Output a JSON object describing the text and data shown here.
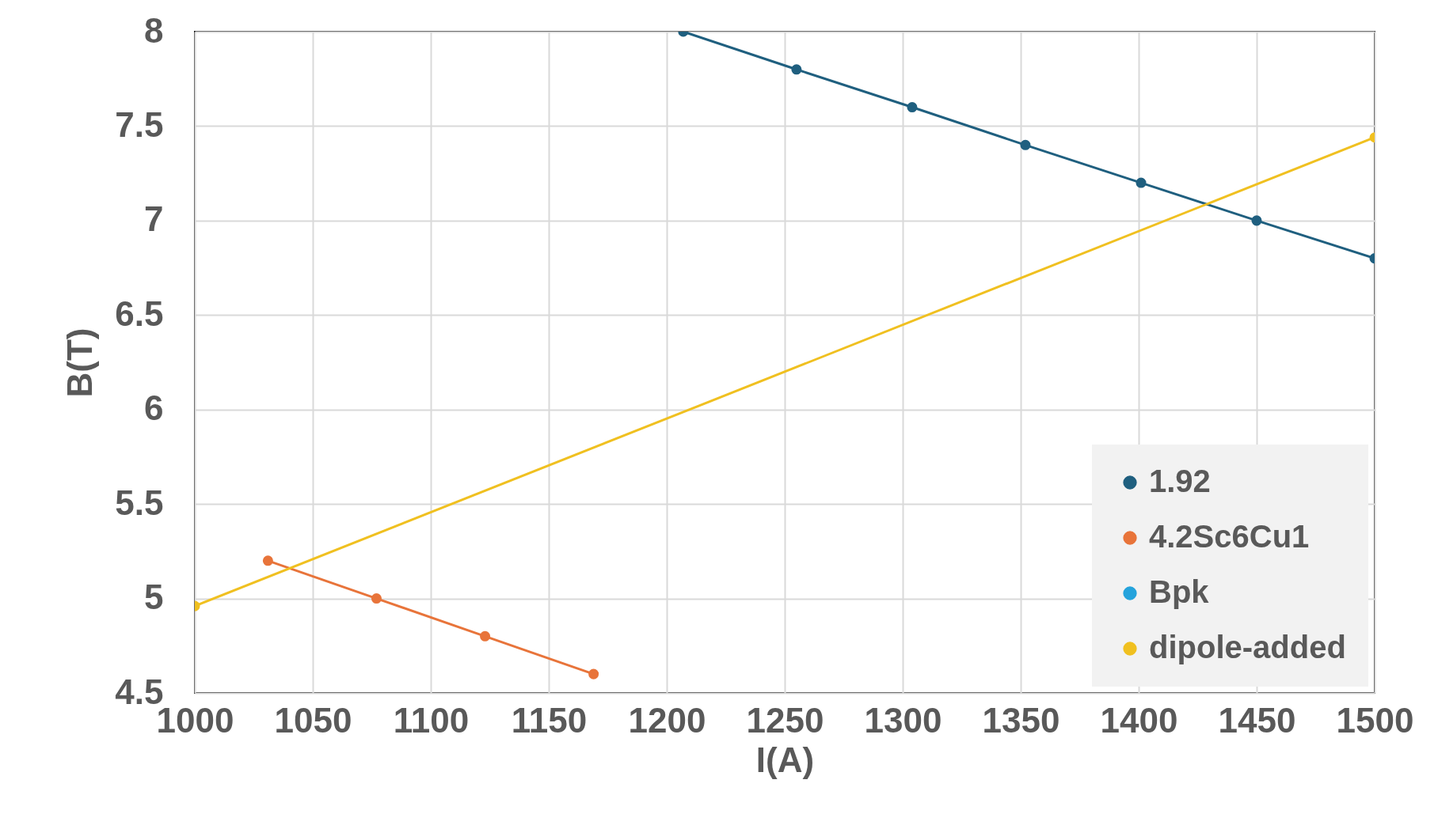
{
  "chart_data": {
    "type": "line",
    "xlabel": "I(A)",
    "ylabel": "B(T)",
    "xlim": [
      1000,
      1500
    ],
    "xticks": [
      1000,
      1050,
      1100,
      1150,
      1200,
      1250,
      1300,
      1350,
      1400,
      1450,
      1500
    ],
    "ylim": [
      4.5,
      8
    ],
    "yticks": [
      4.5,
      5,
      5.5,
      6,
      6.5,
      7,
      7.5,
      8
    ],
    "series": [
      {
        "name": "1.92",
        "color": "#1f5f7f",
        "x": [
          1207,
          1255,
          1304,
          1352,
          1401,
          1450,
          1500
        ],
        "values": [
          8,
          7.8,
          7.6,
          7.4,
          7.2,
          7.0,
          6.8
        ]
      },
      {
        "name": "4.2Sc6Cu1",
        "color": "#e8743a",
        "x": [
          1031,
          1077,
          1123,
          1169
        ],
        "values": [
          5.2,
          5.0,
          4.8,
          4.6
        ]
      },
      {
        "name": "Bpk",
        "color": "#25a3dc"
      },
      {
        "name": "dipole-added",
        "color": "#f0c020",
        "x": [
          1000,
          1500
        ],
        "values": [
          4.96,
          7.44
        ]
      }
    ],
    "grid": true,
    "legend": "bottom right",
    "marker": "circle",
    "line_style": "solid"
  }
}
